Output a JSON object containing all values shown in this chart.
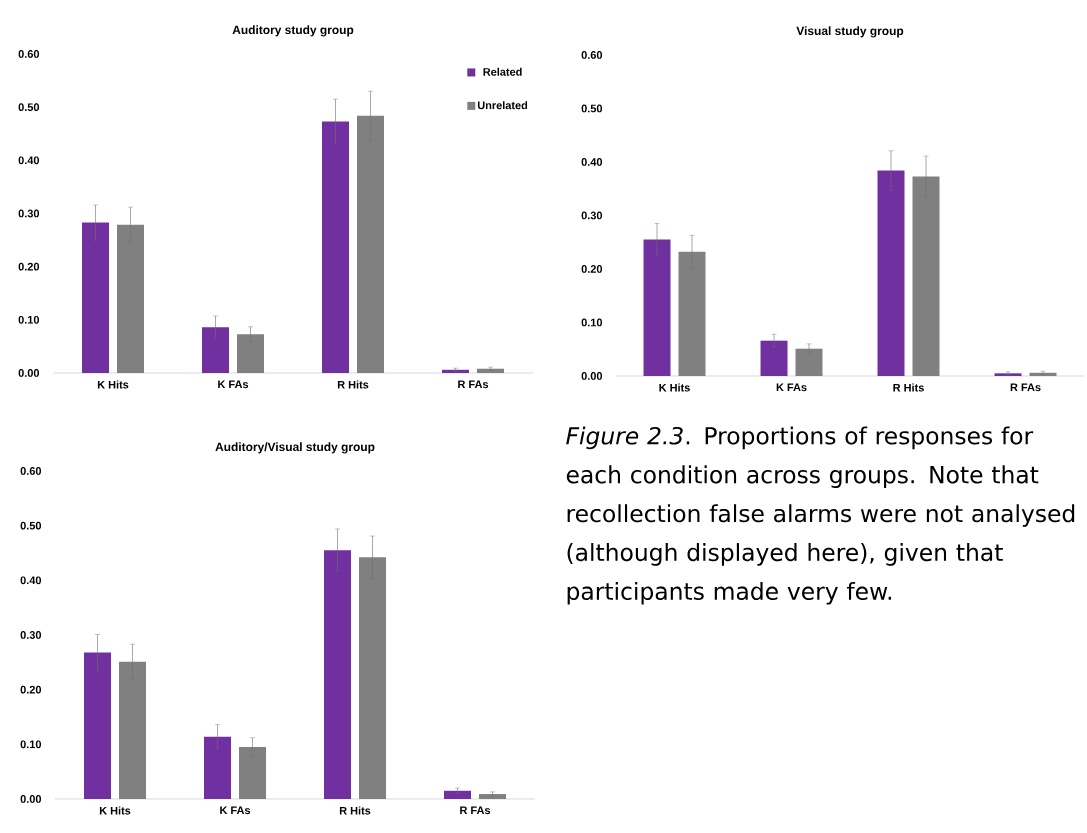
{
  "chart_data": [
    {
      "type": "bar",
      "title": "Auditory study group",
      "categories": [
        "K Hits",
        "K FAs",
        "R Hits",
        "R FAs"
      ],
      "ylim": [
        0,
        0.6
      ],
      "yticks": [
        {
          "value": 0,
          "label": "0.00"
        },
        {
          "value": 0.1,
          "label": "0.10"
        },
        {
          "value": 0.2,
          "label": "0.20"
        },
        {
          "value": 0.3,
          "label": "0.30"
        },
        {
          "value": 0.4,
          "label": "0.40"
        },
        {
          "value": 0.5,
          "label": "0.50"
        },
        {
          "value": 0.6,
          "label": "0.60"
        }
      ],
      "legend": "top right",
      "grid": false,
      "series": [
        {
          "name": "Related",
          "color": "#7030a0",
          "values": [
            0.283,
            0.086,
            0.473,
            0.006
          ],
          "errors": [
            0.033,
            0.021,
            0.042,
            0.003
          ]
        },
        {
          "name": "Unrelated",
          "color": "#808080",
          "values": [
            0.279,
            0.073,
            0.484,
            0.008
          ],
          "errors": [
            0.033,
            0.014,
            0.046,
            0.003
          ]
        }
      ]
    },
    {
      "type": "bar",
      "title": "Visual study group",
      "categories": [
        "K Hits",
        "K FAs",
        "R Hits",
        "R FAs"
      ],
      "ylim": [
        0,
        0.6
      ],
      "yticks": [
        {
          "value": 0,
          "label": "0.00"
        },
        {
          "value": 0.1,
          "label": "0.10"
        },
        {
          "value": 0.2,
          "label": "0.20"
        },
        {
          "value": 0.3,
          "label": "0.30"
        },
        {
          "value": 0.4,
          "label": "0.40"
        },
        {
          "value": 0.5,
          "label": "0.50"
        },
        {
          "value": 0.6,
          "label": "0.60"
        }
      ],
      "grid": false,
      "series": [
        {
          "color": "#7030a0",
          "values": [
            0.255,
            0.066,
            0.384,
            0.005
          ],
          "errors": [
            0.03,
            0.012,
            0.037,
            0.003
          ]
        },
        {
          "color": "#808080",
          "values": [
            0.232,
            0.051,
            0.373,
            0.006
          ],
          "errors": [
            0.031,
            0.009,
            0.038,
            0.003
          ]
        }
      ]
    },
    {
      "type": "bar",
      "title": "Auditory/Visual study group",
      "categories": [
        "K Hits",
        "K FAs",
        "R Hits",
        "R FAs"
      ],
      "ylim": [
        0,
        0.6
      ],
      "yticks": [
        {
          "value": 0,
          "label": "0.00"
        },
        {
          "value": 0.1,
          "label": "0.10"
        },
        {
          "value": 0.2,
          "label": "0.20"
        },
        {
          "value": 0.3,
          "label": "0.30"
        },
        {
          "value": 0.4,
          "label": "0.40"
        },
        {
          "value": 0.5,
          "label": "0.50"
        },
        {
          "value": 0.6,
          "label": "0.60"
        }
      ],
      "grid": false,
      "series": [
        {
          "color": "#7030a0",
          "values": [
            0.268,
            0.114,
            0.455,
            0.015
          ],
          "errors": [
            0.033,
            0.022,
            0.039,
            0.005
          ]
        },
        {
          "color": "#808080",
          "values": [
            0.251,
            0.095,
            0.442,
            0.009
          ],
          "errors": [
            0.032,
            0.017,
            0.039,
            0.004
          ]
        }
      ]
    },
    {
      "type": "other",
      "annotations": [
        "*Figure 2.3*. Proportions of responses for each condition across groups. Note that recollection false alarms were not analysed (although displayed here), given that participants made very few."
      ]
    }
  ]
}
